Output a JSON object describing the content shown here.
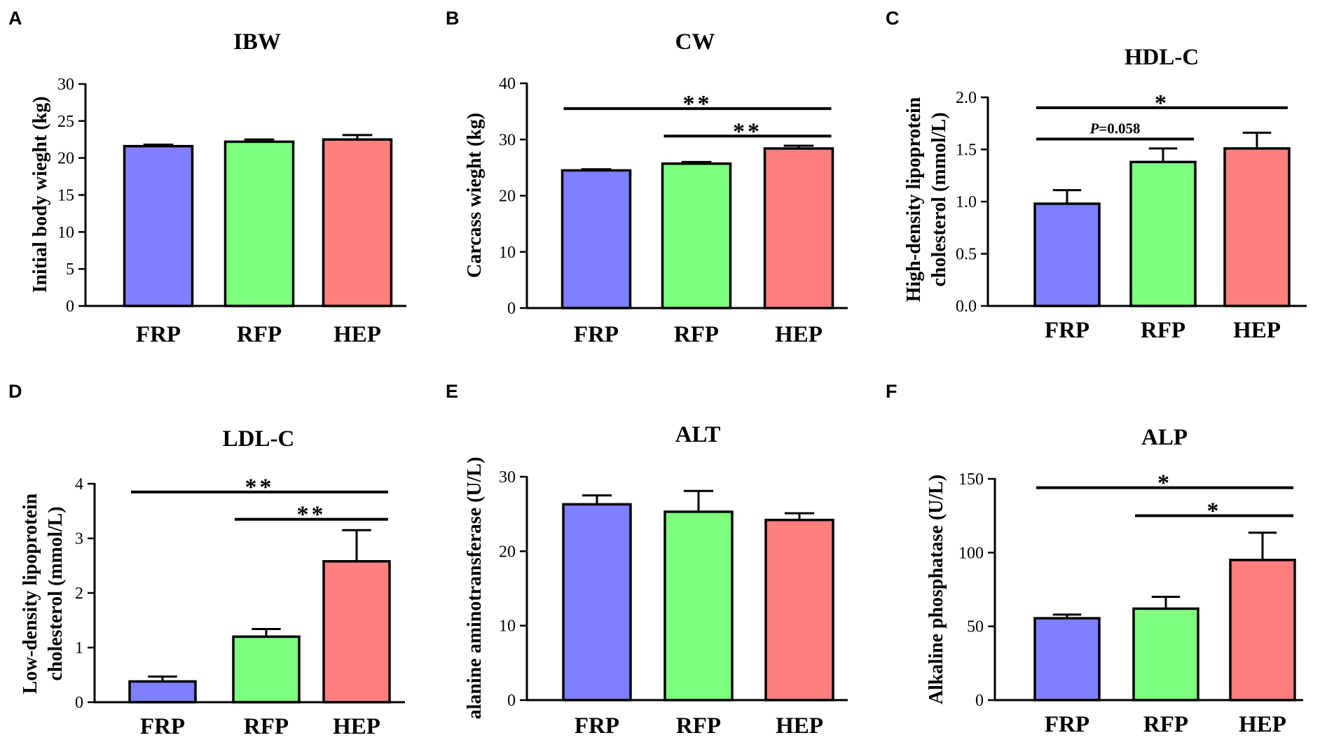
{
  "colors": {
    "FRP": "#7f7fff",
    "RFP": "#7fff7f",
    "HEP": "#ff7f7f",
    "ink": "#000000"
  },
  "chart_data": [
    {
      "panel": "A",
      "type": "bar",
      "title": "IBW",
      "ylabel": "Initial body wieght (kg)",
      "categories": [
        "FRP",
        "RFP",
        "HEP"
      ],
      "values": [
        21.6,
        22.2,
        22.5
      ],
      "errors": [
        0.2,
        0.3,
        0.6
      ],
      "ylim": [
        0,
        30
      ],
      "yticks": [
        0,
        5,
        10,
        15,
        20,
        25,
        30
      ],
      "annotations": []
    },
    {
      "panel": "B",
      "type": "bar",
      "title": "CW",
      "ylabel": "Carcass wieght (kg)",
      "categories": [
        "FRP",
        "RFP",
        "HEP"
      ],
      "values": [
        24.5,
        25.7,
        28.4
      ],
      "errors": [
        0.2,
        0.3,
        0.5
      ],
      "ylim": [
        0,
        40
      ],
      "yticks": [
        0,
        10,
        20,
        30,
        40
      ],
      "annotations": [
        {
          "from": "FRP",
          "to": "HEP",
          "label": "**",
          "y": 35.5
        },
        {
          "from": "RFP",
          "to": "HEP",
          "label": "**",
          "y": 30.6
        }
      ]
    },
    {
      "panel": "C",
      "type": "bar",
      "title": "HDL-C",
      "ylabel": "High-density lipoprotein\ncholesterol (mmol/L)",
      "categories": [
        "FRP",
        "RFP",
        "HEP"
      ],
      "values": [
        0.98,
        1.38,
        1.51
      ],
      "errors": [
        0.13,
        0.13,
        0.15
      ],
      "ylim": [
        0,
        2.0
      ],
      "yticks": [
        "0.0",
        "0.5",
        "1.0",
        "1.5",
        "2.0"
      ],
      "annotations": [
        {
          "from": "FRP",
          "to": "HEP",
          "label": "*",
          "y": 1.9
        },
        {
          "from": "FRP",
          "to": "RFP",
          "label": "P=0.058",
          "italic_prefix": "P",
          "label_rest": "=0.058",
          "y": 1.6
        }
      ]
    },
    {
      "panel": "D",
      "type": "bar",
      "title": "LDL-C",
      "ylabel": "Low-density lipoprotein\ncholesterol (mmol/L)",
      "categories": [
        "FRP",
        "RFP",
        "HEP"
      ],
      "values": [
        0.38,
        1.2,
        2.58
      ],
      "errors": [
        0.09,
        0.14,
        0.57
      ],
      "ylim": [
        0,
        4
      ],
      "yticks": [
        0,
        1,
        2,
        3,
        4
      ],
      "annotations": [
        {
          "from": "FRP",
          "to": "HEP",
          "label": "**",
          "y": 3.85
        },
        {
          "from": "RFP",
          "to": "HEP",
          "label": "**",
          "y": 3.35
        }
      ]
    },
    {
      "panel": "E",
      "type": "bar",
      "title": "ALT",
      "ylabel": "alanine aminotransferase (U/L)",
      "categories": [
        "FRP",
        "RFP",
        "HEP"
      ],
      "values": [
        26.3,
        25.3,
        24.2
      ],
      "errors": [
        1.2,
        2.8,
        0.9
      ],
      "ylim": [
        0,
        30
      ],
      "yticks": [
        0,
        10,
        20,
        30
      ],
      "annotations": []
    },
    {
      "panel": "F",
      "type": "bar",
      "title": "ALP",
      "ylabel": "Alkaline phosphatase (U/L)",
      "categories": [
        "FRP",
        "RFP",
        "HEP"
      ],
      "values": [
        55.5,
        62,
        95
      ],
      "errors": [
        2.5,
        8,
        18.5
      ],
      "ylim": [
        0,
        150
      ],
      "yticks": [
        0,
        50,
        100,
        150
      ],
      "annotations": [
        {
          "from": "FRP",
          "to": "HEP",
          "label": "*",
          "y": 144
        },
        {
          "from": "RFP",
          "to": "HEP",
          "label": "*",
          "y": 125
        }
      ]
    }
  ]
}
